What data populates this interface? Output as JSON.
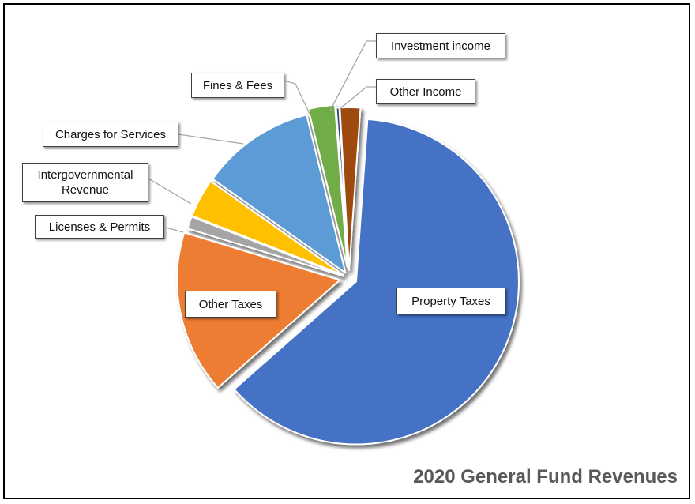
{
  "chart_data": {
    "type": "pie",
    "title": "2020 General Fund Revenues",
    "categories": [
      "Property Taxes",
      "Other Taxes",
      "Licenses & Permits",
      "Intergovernmental Revenue",
      "Charges for Services",
      "Fines & Fees",
      "Investment income",
      "Other Income"
    ],
    "values": [
      61.5,
      16.0,
      1.2,
      3.8,
      11.2,
      2.6,
      0.3,
      2.0
    ],
    "colors": [
      "#4472c4",
      "#ed7d31",
      "#a5a5a5",
      "#ffc000",
      "#5b9bd5",
      "#70ad47",
      "#264478",
      "#9e480e"
    ],
    "legend": "none",
    "data_labels": [
      "Property Taxes",
      "Other Taxes",
      "Licenses & Permits",
      "Intergovernmental\nRevenue",
      "Charges for Services",
      "Fines & Fees",
      "Investment income",
      "Other Income"
    ]
  }
}
